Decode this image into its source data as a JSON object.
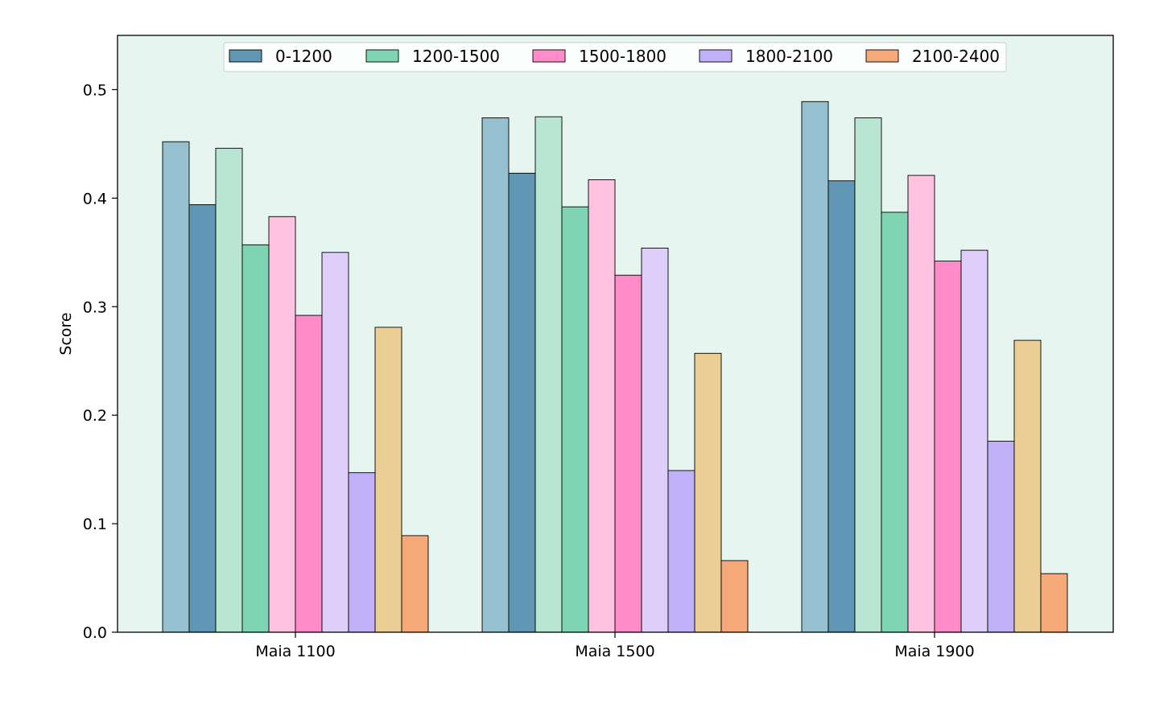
{
  "chart_data": {
    "type": "bar",
    "title": "",
    "xlabel": "",
    "ylabel": "Score",
    "ylim": [
      0,
      0.55
    ],
    "yticks": [
      "0.0",
      "0.1",
      "0.2",
      "0.3",
      "0.4",
      "0.5"
    ],
    "categories": [
      "Maia 1100",
      "Maia 1500",
      "Maia 1900"
    ],
    "grid": false,
    "legend_position": "top-center",
    "background_color": "#e6f5ef",
    "series": [
      {
        "name": "0-1200",
        "color": "#6096b4",
        "values": [
          0.394,
          0.423,
          0.416
        ]
      },
      {
        "name": "1200-1500",
        "color": "#7fd5b3",
        "values": [
          0.357,
          0.392,
          0.387
        ]
      },
      {
        "name": "1500-1800",
        "color": "#ff8cc8",
        "values": [
          0.292,
          0.329,
          0.342
        ]
      },
      {
        "name": "1800-2100",
        "color": "#c0b0f8",
        "values": [
          0.147,
          0.149,
          0.176
        ]
      },
      {
        "name": "2100-2400",
        "color": "#f5a878",
        "values": [
          0.089,
          0.066,
          0.054
        ]
      }
    ],
    "companion_series": [
      {
        "color": "#96bfcf",
        "values": [
          0.452,
          0.474,
          0.489
        ]
      },
      {
        "color": "#b8e6d3",
        "values": [
          0.446,
          0.475,
          0.474
        ]
      },
      {
        "color": "#ffc2e0",
        "values": [
          0.383,
          0.417,
          0.421
        ]
      },
      {
        "color": "#dfcdfa",
        "values": [
          0.35,
          0.354,
          0.352
        ]
      },
      {
        "color": "#ebce94",
        "values": [
          0.281,
          0.257,
          0.269
        ]
      }
    ]
  }
}
